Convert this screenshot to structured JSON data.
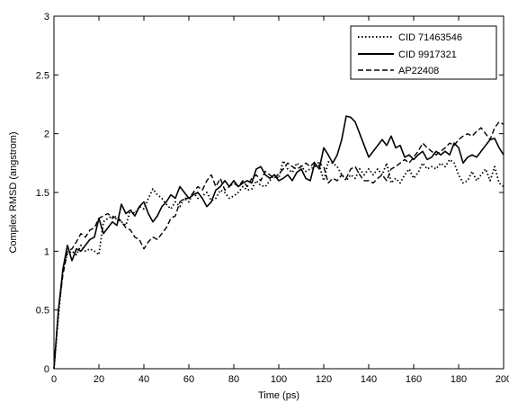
{
  "chart_data": {
    "type": "line",
    "xlabel": "Time (ps)",
    "ylabel": "Complex RMSD (angstrom)",
    "xlim": [
      0,
      200
    ],
    "ylim": [
      0,
      3
    ],
    "xticks": [
      "0",
      "20",
      "40",
      "60",
      "80",
      "100",
      "120",
      "140",
      "160",
      "180",
      "200"
    ],
    "yticks": [
      "0",
      "0.5",
      "1",
      "1.5",
      "2",
      "2.5",
      "3"
    ],
    "grid": false,
    "legend_position": "top-right",
    "series": [
      {
        "name": "CID 71463546",
        "style": "dotted",
        "color": "#000000",
        "x": [
          0,
          2,
          4,
          6,
          8,
          10,
          12,
          14,
          16,
          18,
          20,
          22,
          24,
          26,
          28,
          30,
          32,
          34,
          36,
          38,
          40,
          42,
          44,
          46,
          48,
          50,
          52,
          54,
          56,
          58,
          60,
          62,
          64,
          66,
          68,
          70,
          72,
          74,
          76,
          78,
          80,
          82,
          84,
          86,
          88,
          90,
          92,
          94,
          96,
          98,
          100,
          102,
          104,
          106,
          108,
          110,
          112,
          114,
          116,
          118,
          120,
          122,
          124,
          126,
          128,
          130,
          132,
          134,
          136,
          138,
          140,
          142,
          144,
          146,
          148,
          150,
          152,
          154,
          156,
          158,
          160,
          162,
          164,
          166,
          168,
          170,
          172,
          174,
          176,
          178,
          180,
          182,
          184,
          186,
          188,
          190,
          192,
          194,
          196,
          198,
          200
        ],
        "values": [
          0,
          0.45,
          0.85,
          0.98,
          1.0,
          0.97,
          1.05,
          1.0,
          1.02,
          1.0,
          0.97,
          1.25,
          1.28,
          1.3,
          1.27,
          1.25,
          1.22,
          1.35,
          1.32,
          1.38,
          1.36,
          1.45,
          1.53,
          1.48,
          1.45,
          1.4,
          1.36,
          1.42,
          1.38,
          1.45,
          1.42,
          1.5,
          1.45,
          1.47,
          1.5,
          1.43,
          1.45,
          1.52,
          1.5,
          1.45,
          1.47,
          1.5,
          1.55,
          1.52,
          1.53,
          1.6,
          1.56,
          1.55,
          1.6,
          1.65,
          1.62,
          1.77,
          1.7,
          1.67,
          1.75,
          1.72,
          1.68,
          1.7,
          1.72,
          1.73,
          1.6,
          1.76,
          1.75,
          1.72,
          1.65,
          1.6,
          1.65,
          1.62,
          1.7,
          1.65,
          1.7,
          1.65,
          1.7,
          1.65,
          1.75,
          1.58,
          1.62,
          1.58,
          1.65,
          1.7,
          1.62,
          1.67,
          1.75,
          1.7,
          1.72,
          1.7,
          1.75,
          1.72,
          1.78,
          1.75,
          1.65,
          1.58,
          1.6,
          1.68,
          1.6,
          1.65,
          1.7,
          1.6,
          1.72,
          1.58,
          1.55
        ]
      },
      {
        "name": "CID 9917321",
        "style": "solid",
        "color": "#000000",
        "x": [
          0,
          2,
          4,
          6,
          8,
          10,
          12,
          14,
          16,
          18,
          20,
          22,
          24,
          26,
          28,
          30,
          32,
          34,
          36,
          38,
          40,
          42,
          44,
          46,
          48,
          50,
          52,
          54,
          56,
          58,
          60,
          62,
          64,
          66,
          68,
          70,
          72,
          74,
          76,
          78,
          80,
          82,
          84,
          86,
          88,
          90,
          92,
          94,
          96,
          98,
          100,
          102,
          104,
          106,
          108,
          110,
          112,
          114,
          116,
          118,
          120,
          122,
          124,
          126,
          128,
          130,
          132,
          134,
          136,
          138,
          140,
          142,
          144,
          146,
          148,
          150,
          152,
          154,
          156,
          158,
          160,
          162,
          164,
          166,
          168,
          170,
          172,
          174,
          176,
          178,
          180,
          182,
          184,
          186,
          188,
          190,
          192,
          194,
          196,
          198,
          200
        ],
        "values": [
          0,
          0.5,
          0.85,
          1.05,
          0.92,
          1.02,
          1.0,
          1.05,
          1.1,
          1.12,
          1.28,
          1.15,
          1.2,
          1.25,
          1.22,
          1.4,
          1.32,
          1.35,
          1.3,
          1.38,
          1.42,
          1.32,
          1.25,
          1.3,
          1.38,
          1.42,
          1.48,
          1.45,
          1.55,
          1.5,
          1.45,
          1.48,
          1.5,
          1.45,
          1.38,
          1.42,
          1.52,
          1.55,
          1.6,
          1.55,
          1.6,
          1.55,
          1.58,
          1.6,
          1.58,
          1.7,
          1.72,
          1.65,
          1.62,
          1.65,
          1.6,
          1.62,
          1.65,
          1.6,
          1.67,
          1.7,
          1.62,
          1.6,
          1.75,
          1.7,
          1.88,
          1.82,
          1.75,
          1.82,
          1.95,
          2.15,
          2.14,
          2.1,
          2.0,
          1.9,
          1.8,
          1.85,
          1.9,
          1.95,
          1.9,
          1.98,
          1.88,
          1.9,
          1.8,
          1.82,
          1.78,
          1.82,
          1.85,
          1.78,
          1.8,
          1.85,
          1.82,
          1.85,
          1.82,
          1.92,
          1.88,
          1.75,
          1.8,
          1.82,
          1.8,
          1.85,
          1.9,
          1.95,
          1.96,
          1.88,
          1.82
        ]
      },
      {
        "name": "AP22408",
        "style": "dashed",
        "color": "#000000",
        "x": [
          0,
          2,
          4,
          6,
          8,
          10,
          12,
          14,
          16,
          18,
          20,
          22,
          24,
          26,
          28,
          30,
          32,
          34,
          36,
          38,
          40,
          42,
          44,
          46,
          48,
          50,
          52,
          54,
          56,
          58,
          60,
          62,
          64,
          66,
          68,
          70,
          72,
          74,
          76,
          78,
          80,
          82,
          84,
          86,
          88,
          90,
          92,
          94,
          96,
          98,
          100,
          102,
          104,
          106,
          108,
          110,
          112,
          114,
          116,
          118,
          120,
          122,
          124,
          126,
          128,
          130,
          132,
          134,
          136,
          138,
          140,
          142,
          144,
          146,
          148,
          150,
          152,
          154,
          156,
          158,
          160,
          162,
          164,
          166,
          168,
          170,
          172,
          174,
          176,
          178,
          180,
          182,
          184,
          186,
          188,
          190,
          192,
          194,
          196,
          198,
          200
        ],
        "values": [
          0,
          0.5,
          0.8,
          1.0,
          1.02,
          1.08,
          1.15,
          1.12,
          1.18,
          1.2,
          1.28,
          1.3,
          1.32,
          1.28,
          1.3,
          1.25,
          1.2,
          1.18,
          1.12,
          1.1,
          1.02,
          1.08,
          1.12,
          1.1,
          1.15,
          1.2,
          1.28,
          1.3,
          1.42,
          1.45,
          1.45,
          1.5,
          1.55,
          1.52,
          1.6,
          1.65,
          1.55,
          1.62,
          1.52,
          1.55,
          1.58,
          1.55,
          1.6,
          1.55,
          1.62,
          1.65,
          1.6,
          1.68,
          1.65,
          1.62,
          1.66,
          1.7,
          1.75,
          1.72,
          1.7,
          1.72,
          1.75,
          1.72,
          1.76,
          1.75,
          1.72,
          1.58,
          1.62,
          1.6,
          1.65,
          1.62,
          1.7,
          1.72,
          1.65,
          1.6,
          1.6,
          1.58,
          1.62,
          1.65,
          1.6,
          1.7,
          1.72,
          1.75,
          1.78,
          1.75,
          1.8,
          1.85,
          1.92,
          1.88,
          1.85,
          1.82,
          1.85,
          1.88,
          1.92,
          1.9,
          1.95,
          1.98,
          2.0,
          1.98,
          2.02,
          2.05,
          2.0,
          1.95,
          2.05,
          2.1,
          2.08
        ]
      }
    ]
  }
}
